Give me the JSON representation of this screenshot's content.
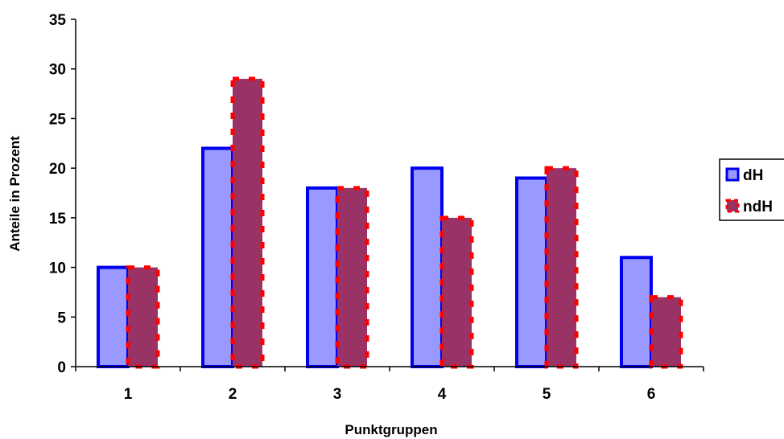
{
  "chart_data": {
    "type": "bar",
    "title": "",
    "xlabel": "Punktgruppen",
    "ylabel": "Anteile in Prozent",
    "categories": [
      "1",
      "2",
      "3",
      "4",
      "5",
      "6"
    ],
    "series": [
      {
        "name": "dH",
        "values": [
          10,
          22,
          18,
          20,
          19,
          11
        ],
        "fill": "#9999ff",
        "border": "#0000ee",
        "border_style": "solid"
      },
      {
        "name": "ndH",
        "values": [
          10,
          29,
          18,
          15,
          20,
          7
        ],
        "fill": "#993366",
        "border": "#ff0000",
        "border_style": "dashed"
      }
    ],
    "ylim": [
      0,
      35
    ],
    "yticks": [
      0,
      5,
      10,
      15,
      20,
      25,
      30,
      35
    ],
    "grid": false,
    "legend": "right"
  }
}
